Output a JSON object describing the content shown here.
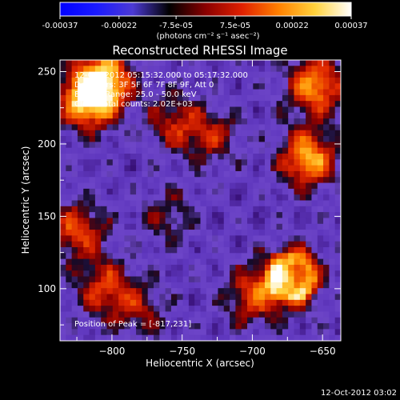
{
  "colorbar": {
    "tick_labels": [
      "-0.00037",
      "-0.00022",
      "-7.5e-05",
      "7.5e-05",
      "0.00022",
      "0.00037"
    ],
    "tick_values": [
      -0.00037,
      -0.00022,
      -7.5e-05,
      7.5e-05,
      0.00022,
      0.00037
    ],
    "range": [
      -0.00037,
      0.00037
    ],
    "units_label": "(photons cm⁻² s⁻¹ asec⁻²)",
    "colors": [
      "#0000ff",
      "#1a1aff",
      "#4c3ad4",
      "#000000",
      "#8a0000",
      "#e02000",
      "#ff8000",
      "#ffd23c",
      "#ffffff"
    ]
  },
  "chart_data": {
    "type": "heatmap",
    "title": "Reconstructed RHESSI Image",
    "xlabel": "Heliocentric X (arcsec)",
    "ylabel": "Heliocentric Y (arcsec)",
    "xlim": [
      -837,
      -637
    ],
    "ylim": [
      64,
      258
    ],
    "x_ticks": [
      -800,
      -750,
      -700,
      -650
    ],
    "y_ticks": [
      100,
      150,
      200,
      250
    ],
    "x_tick_labels": [
      "−800",
      "−750",
      "−700",
      "−650"
    ],
    "y_tick_labels": [
      "100",
      "150",
      "200",
      "250"
    ],
    "info_lines": [
      "12-Oct-2012 05:15:32.000 to 05:17:32.000",
      "Detectors: 3F 5F 6F 7F 8F 9F, Att 0",
      "Energy Range: 25.0 - 50.0 keV",
      "Clean    Total counts: 2.02E+03"
    ],
    "peak_label": "Position of Peak = [-817,231]",
    "peak_position": [
      -817,
      231
    ],
    "features": [
      {
        "x": -817,
        "y": 231,
        "level": 1.0
      },
      {
        "x": -805,
        "y": 245,
        "level": 0.8
      },
      {
        "x": -660,
        "y": 190,
        "level": 0.85
      },
      {
        "x": -655,
        "y": 240,
        "level": 0.8
      },
      {
        "x": -672,
        "y": 108,
        "level": 0.8
      },
      {
        "x": -700,
        "y": 95,
        "level": 0.55
      },
      {
        "x": -825,
        "y": 140,
        "level": 0.6
      },
      {
        "x": -805,
        "y": 100,
        "level": 0.55
      },
      {
        "x": -755,
        "y": 215,
        "level": 0.45
      },
      {
        "x": -728,
        "y": 205,
        "level": 0.4
      },
      {
        "x": -760,
        "y": 150,
        "level": 0.3
      },
      {
        "x": -780,
        "y": 85,
        "level": 0.35
      }
    ]
  },
  "footer": {
    "timestamp": "12-Oct-2012 03:02"
  }
}
